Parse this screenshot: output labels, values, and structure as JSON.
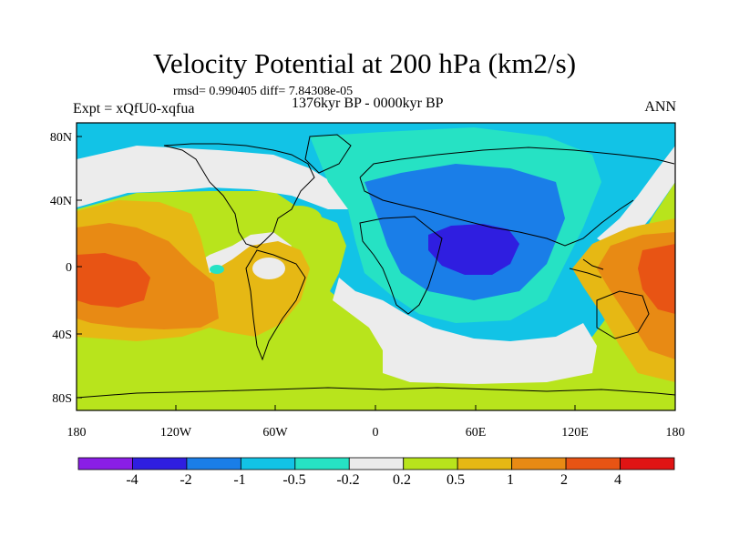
{
  "header": {
    "title": "Velocity Potential at 200 hPa (km2/s)",
    "stats": "rmsd= 0.990405 diff= 7.84308e-05",
    "experiment": "Expt = xQfU0-xqfua",
    "period": "1376kyr BP - 0000kyr BP",
    "season": "ANN"
  },
  "axes": {
    "lat_labels": [
      "80N",
      "40N",
      "0",
      "40S",
      "80S"
    ],
    "lon_labels": [
      "180",
      "120W",
      "60W",
      "0",
      "60E",
      "120E",
      "180"
    ]
  },
  "colorbar": {
    "labels": [
      "-4",
      "-2",
      "-1",
      "-0.5",
      "-0.2",
      "0.2",
      "0.5",
      "1",
      "2",
      "4"
    ],
    "colors": [
      "#8a1ee6",
      "#2f1ee0",
      "#1a7ee8",
      "#12c3e6",
      "#26e2c4",
      "#ececec",
      "#b8e41c",
      "#e6b814",
      "#e88a14",
      "#e85414",
      "#e01414"
    ]
  }
}
